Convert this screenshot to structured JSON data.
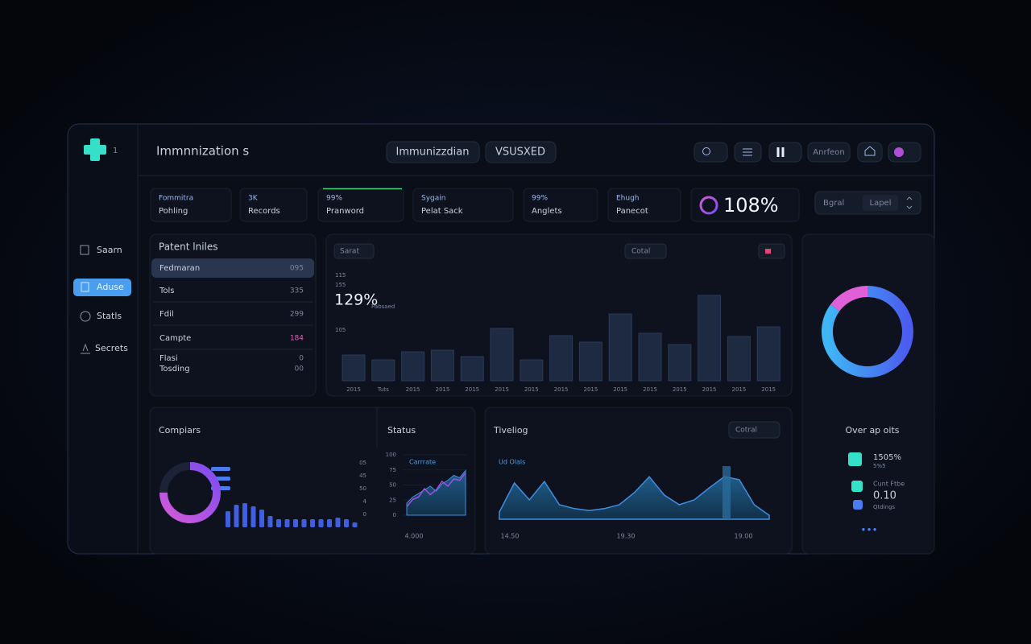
{
  "sidebar": {
    "badge": "1",
    "nav": [
      "Saarn",
      "Aduse",
      "Statls",
      "Secrets"
    ]
  },
  "header": {
    "title": "Immnnization s",
    "tabs": [
      "Immunizzdian",
      "VSUSXED"
    ],
    "action": "Anrfeon"
  },
  "kpis": [
    {
      "label": "Fommitra",
      "sub": "Pohling"
    },
    {
      "label": "3K",
      "sub": "Records"
    },
    {
      "label": "99%",
      "sub": "Pranword"
    },
    {
      "label": "Sygain",
      "sub": "Pelat Sack"
    },
    {
      "label": "99%",
      "sub": "Anglets"
    },
    {
      "label": "Ehugh",
      "sub": "Panecot"
    }
  ],
  "highlight": "108%",
  "filters": [
    "Bgral",
    "Lapel"
  ],
  "patient_files": {
    "title": "Patent lniles",
    "rows": [
      [
        "Fedmaran",
        "095"
      ],
      [
        "Tols",
        "335"
      ],
      [
        "Fdil",
        "299"
      ],
      [
        "Campte",
        "184"
      ],
      [
        "Flasi",
        "0"
      ],
      [
        "Tosding",
        "00"
      ]
    ]
  },
  "bar_chart": {
    "dropdowns": [
      "Sarat",
      "Cotal"
    ],
    "axis_labels": [
      "115",
      "155",
      "105"
    ],
    "headline": "129%",
    "note": "Pabsaed",
    "categories": [
      "2015",
      "Tuts",
      "2015",
      "2015",
      "2015",
      "2015",
      "2015",
      "2015",
      "2015",
      "2015",
      "2015",
      "2015",
      "2015",
      "2015",
      "2015"
    ],
    "values": [
      32,
      26,
      36,
      38,
      30,
      65,
      26,
      56,
      48,
      83,
      59,
      45,
      106,
      55,
      67
    ],
    "ylim": [
      0,
      110
    ]
  },
  "overview": {
    "title": "Over ap oits",
    "donut": [
      85,
      15
    ],
    "items": [
      {
        "value": "1505%",
        "sub": "5%5"
      },
      {
        "label": "Cunt Ftbe",
        "value": "0.10",
        "sub": "Qtdings"
      }
    ]
  },
  "comparisons": {
    "title": "Compiars",
    "status": "Status",
    "donut": [
      75,
      25
    ],
    "bars": {
      "axis_labels": [
        "05",
        "45",
        "50",
        "4",
        "0"
      ],
      "values": [
        20,
        28,
        30,
        26,
        22,
        14,
        10,
        10,
        10,
        10,
        10,
        10,
        10,
        12,
        10,
        6
      ],
      "ylim": [
        0,
        40
      ]
    },
    "line": {
      "label": "Carrrate",
      "ylim": [
        0,
        100
      ],
      "yticks": [
        100,
        75,
        50,
        25,
        0
      ],
      "area": [
        20,
        30,
        36,
        42,
        48,
        40,
        52,
        58,
        66,
        62,
        74
      ],
      "values": [
        14,
        26,
        30,
        44,
        34,
        42,
        56,
        48,
        60,
        58,
        70
      ],
      "x_label": "4.000"
    }
  },
  "timeline": {
    "title": "Tiveliog",
    "dropdown": "Cotral",
    "label": "Ud Olals",
    "ylim": [
      0,
      100
    ],
    "values": [
      15,
      75,
      40,
      78,
      30,
      22,
      18,
      22,
      30,
      55,
      88,
      50,
      30,
      40,
      65,
      88,
      82,
      30,
      8
    ],
    "x_labels": [
      "14.50",
      "19.30",
      "19.00"
    ]
  }
}
